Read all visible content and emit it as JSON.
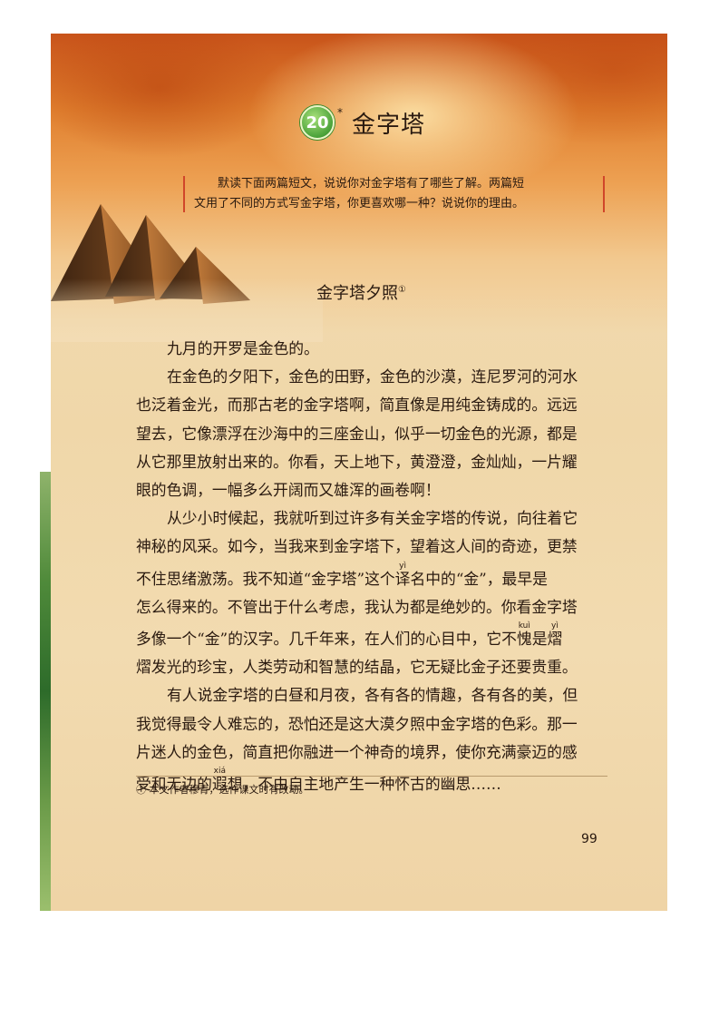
{
  "lesson": {
    "number": "20",
    "marker": "*",
    "title": "金字塔"
  },
  "guide": {
    "lines": [
      "默读下面两篇短文，说说你对金字塔有了哪些了解。两篇短",
      "文用了不同的方式写金字塔，你更喜欢哪一种？说说你的理由。"
    ]
  },
  "article": {
    "title": "金字塔夕照",
    "note_mark": "①",
    "lines": [
      "九月的开罗是金色的。",
      "在金色的夕阳下，金色的田野，金色的沙漠，连尼罗河的河水",
      "也泛着金光，而那古老的金字塔啊，简直像是用纯金铸成的。远远",
      "望去，它像漂浮在沙海中的三座金山，似乎一切金色的光源，都是",
      "从它那里放射出来的。你看，天上地下，黄澄澄，金灿灿，一片耀",
      "眼的色调，一幅多么开阔而又雄浑的画卷啊！",
      "从少小时候起，我就听到过许多有关金字塔的传说，向往着它",
      "神秘的风采。如今，当我来到金字塔下，望着这人间的奇迹，更禁",
      {
        "before": "不住思绪激荡。我不知道“金字塔”这个",
        "ruby": "译",
        "rt": "yì",
        "after": "名中的“金”，最早是"
      },
      "怎么得来的。不管出于什么考虑，我认为都是绝妙的。你看金字塔",
      {
        "before": "多像一个“金”的汉字。几千年来，在人们的心目中，它不",
        "ruby": "愧",
        "rt": "kuì",
        "mid": "是",
        "ruby2": "熠",
        "rt2": "yì"
      },
      "熠发光的珍宝，人类劳动和智慧的结晶，它无疑比金子还要贵重。",
      "有人说金字塔的白昼和月夜，各有各的情趣，各有各的美，但",
      "我觉得最令人难忘的，恐怕还是这大漠夕照中金字塔的色彩。那一",
      "片迷人的金色，简直把你融进一个神奇的境界，使你充满豪迈的感",
      {
        "before": "受和无边的",
        "ruby": "遐",
        "rt": "xiá",
        "after": "想，不由自主地产生一种怀古的幽思……"
      }
    ]
  },
  "footnote": "① 本文作者穆青，选作课文时有改动。",
  "page_number": "99",
  "colors": {
    "accent_red": "#d0462a",
    "badge_green": "#4aa23a",
    "paper": "#f1d9ad",
    "sky": "#e07f2e"
  }
}
